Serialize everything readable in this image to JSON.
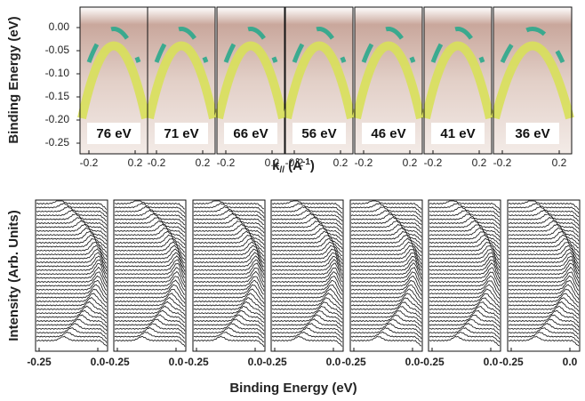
{
  "top": {
    "y_label": "Binding Energy (eV)",
    "y_ticks": [
      "0.00",
      "-0.05",
      "-0.10",
      "-0.15",
      "-0.20",
      "-0.25"
    ],
    "x_label": {
      "k": "k",
      "sub": "//",
      "unit": " (Å",
      "sup": "-1",
      "end": ")"
    },
    "panels": [
      {
        "label": "76 eV",
        "x_ticks": [
          "-0.2",
          "0.2"
        ]
      },
      {
        "label": "71 eV",
        "x_ticks": [
          "-0.2",
          "0.2"
        ]
      },
      {
        "label": "66 eV",
        "x_ticks": [
          "-0.2",
          "0.2"
        ]
      },
      {
        "label": "56 eV",
        "x_ticks": [
          "-0.2",
          "0.2"
        ]
      },
      {
        "label": "46 eV",
        "x_ticks": [
          "-0.2",
          "0.2"
        ]
      },
      {
        "label": "41 eV",
        "x_ticks": [
          "-0.2",
          "0.2"
        ]
      },
      {
        "label": "36 eV",
        "x_ticks": [
          "-0.2",
          "0.2"
        ]
      }
    ]
  },
  "bottom": {
    "y_label": "Intensity (Arb. Units)",
    "x_label": "Binding Energy (eV)",
    "panels": [
      {
        "x_ticks": [
          "-0.25",
          "0.0"
        ]
      },
      {
        "x_ticks": [
          "-0.25",
          "0.0"
        ]
      },
      {
        "x_ticks": [
          "-0.25",
          "0.0"
        ]
      },
      {
        "x_ticks": [
          "-0.25",
          "0.0"
        ]
      },
      {
        "x_ticks": [
          "-0.25",
          "0.0"
        ]
      },
      {
        "x_ticks": [
          "-0.25",
          "0.0"
        ]
      },
      {
        "x_ticks": [
          "-0.25",
          "0.0"
        ]
      }
    ]
  }
}
